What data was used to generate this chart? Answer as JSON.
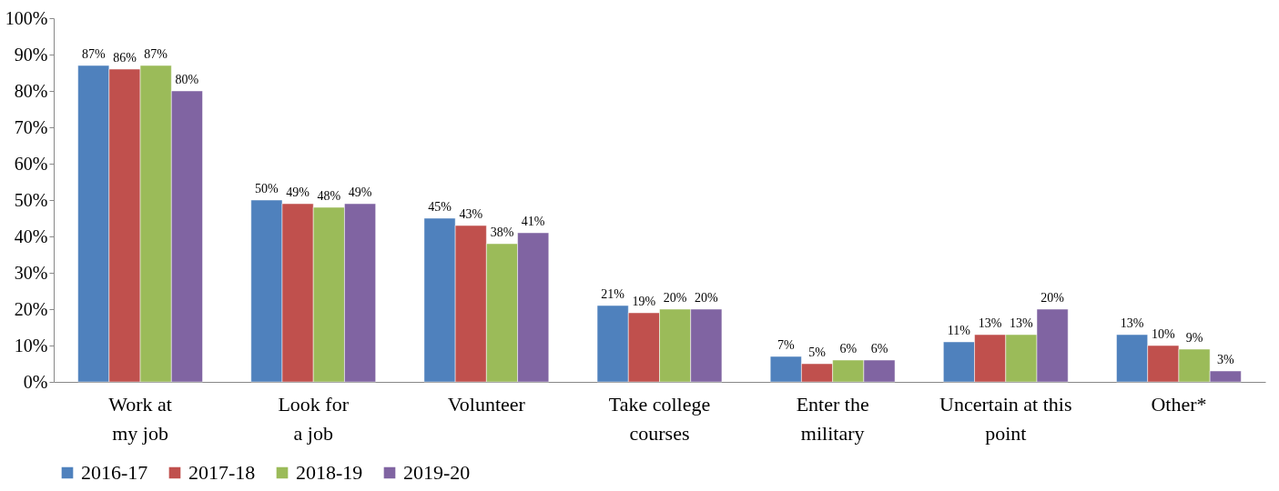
{
  "chart_data": {
    "type": "bar",
    "categories": [
      "Work at\nmy job",
      "Look for\na job",
      "Volunteer",
      "Take college\ncourses",
      "Enter the\nmilitary",
      "Uncertain at this\npoint",
      "Other*"
    ],
    "series": [
      {
        "name": "2016-17",
        "color": "#4f81bd",
        "values": [
          87,
          50,
          45,
          21,
          7,
          11,
          13
        ],
        "value_labels": [
          "87%",
          "50%",
          "45%",
          "21%",
          "7%",
          "11%",
          "13%"
        ]
      },
      {
        "name": "2017-18",
        "color": "#c0504d",
        "values": [
          86,
          49,
          43,
          19,
          5,
          13,
          10
        ],
        "value_labels": [
          "86%",
          "49%",
          "43%",
          "19%",
          "5%",
          "13%",
          "10%"
        ]
      },
      {
        "name": "2018-19",
        "color": "#9bbb59",
        "values": [
          87,
          48,
          38,
          20,
          6,
          13,
          9
        ],
        "value_labels": [
          "87%",
          "48%",
          "38%",
          "20%",
          "6%",
          "13%",
          "9%"
        ]
      },
      {
        "name": "2019-20",
        "color": "#8064a2",
        "values": [
          80,
          49,
          41,
          20,
          6,
          20,
          3
        ],
        "value_labels": [
          "80%",
          "49%",
          "41%",
          "20%",
          "6%",
          "20%",
          "3%"
        ]
      }
    ],
    "ylim": [
      0,
      100
    ],
    "yticks": [
      {
        "value": 0,
        "label": "0%"
      },
      {
        "value": 10,
        "label": "10%"
      },
      {
        "value": 20,
        "label": "20%"
      },
      {
        "value": 30,
        "label": "30%"
      },
      {
        "value": 40,
        "label": "40%"
      },
      {
        "value": 50,
        "label": "50%"
      },
      {
        "value": 60,
        "label": "60%"
      },
      {
        "value": 70,
        "label": "70%"
      },
      {
        "value": 80,
        "label": "80%"
      },
      {
        "value": 90,
        "label": "90%"
      },
      {
        "value": 100,
        "label": "100%"
      }
    ],
    "grid": false,
    "legend": "bottom"
  }
}
